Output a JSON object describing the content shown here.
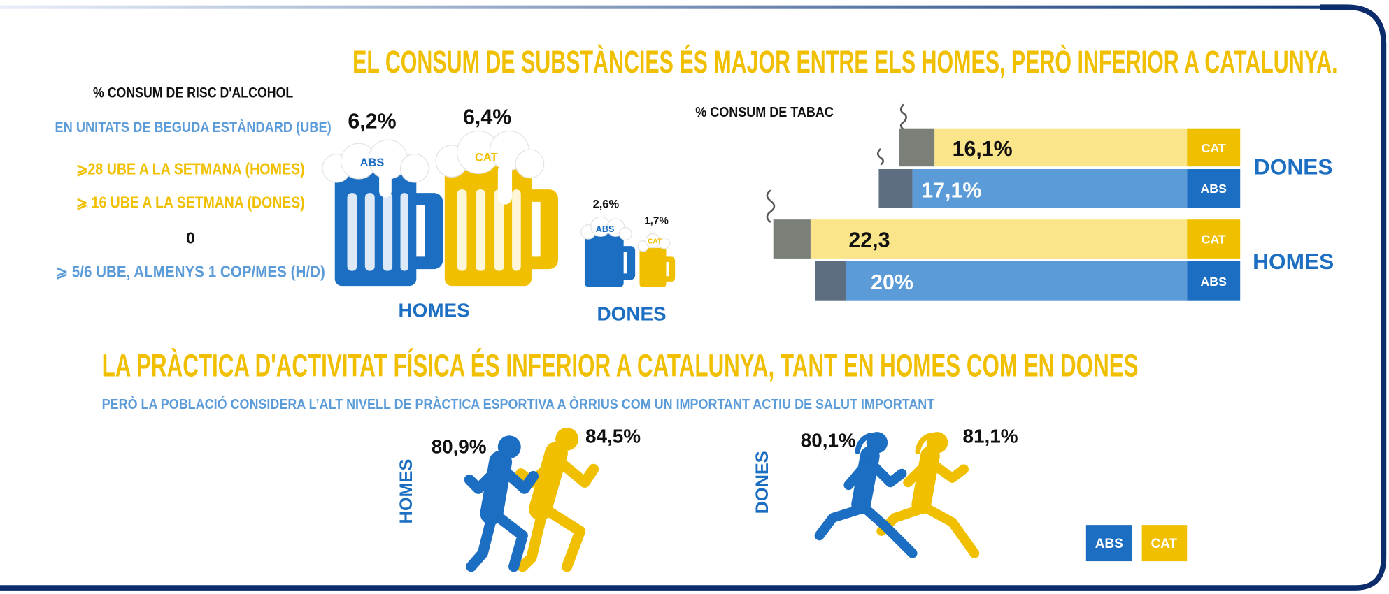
{
  "heading": "EL CONSUM DE SUBSTÀNCIES ÉS MAJOR ENTRE ELS HOMES, PERÒ INFERIOR A CATALUNYA.",
  "alcohol": {
    "title": "% CONSUM DE RISC D'ALCOHOL",
    "subtitle": "EN UNITATS DE BEGUDA ESTÀNDARD (UBE)",
    "criteria": [
      "⩾28 UBE A LA SETMANA (HOMES)",
      "⩾ 16 UBE A LA SETMANA (DONES)",
      "0",
      "⩾ 5/6 UBE, ALMENYS 1 COP/MES (H/D)"
    ],
    "homes": {
      "label": "HOMES",
      "abs": "6,2%",
      "cat": "6,4%"
    },
    "dones": {
      "label": "DONES",
      "abs": "2,6%",
      "cat": "1,7%"
    },
    "abs_label": "ABS",
    "cat_label": "CAT"
  },
  "tabac": {
    "title": "% CONSUM DE TABAC",
    "groups": [
      {
        "label": "DONES",
        "cat": "16,1%",
        "abs": "17,1%"
      },
      {
        "label": "HOMES",
        "cat": "22,3",
        "abs": "20%"
      }
    ],
    "abs_label": "ABS",
    "cat_label": "CAT"
  },
  "activity": {
    "title": "LA PRÀCTICA D'ACTIVITAT FÍSICA ÉS INFERIOR A CATALUNYA,  TANT EN HOMES COM EN DONES",
    "subtitle": "PERÒ LA POBLACIÓ CONSIDERA L’ALT NIVELL DE PRÀCTICA ESPORTIVA A ÒRRIUS COM UN IMPORTANT ACTIU DE SALUT IMPORTANT",
    "homes": {
      "label": "HOMES",
      "abs": "80,9%",
      "cat": "84,5%"
    },
    "dones": {
      "label": "DONES",
      "abs": "80,1%",
      "cat": "81,1%"
    },
    "legend": [
      "ABS",
      "CAT"
    ]
  }
}
